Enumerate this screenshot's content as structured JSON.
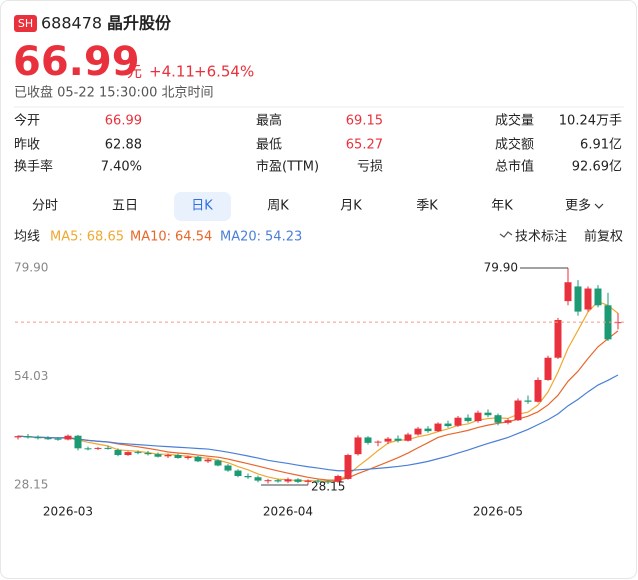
{
  "header": {
    "badge": "SH",
    "code": "688478",
    "name": "晶升股份",
    "price": "66.99",
    "unit": "元",
    "change": "+4.11",
    "change_pct": "+6.54%",
    "status": "已收盘 05-22 15:30:00 北京时间"
  },
  "stats": [
    [
      {
        "label": "今开",
        "value": "66.99",
        "color": "#e8313c"
      },
      {
        "label": "最高",
        "value": "69.15",
        "color": "#e8313c"
      },
      {
        "label": "成交量",
        "value": "10.24万手"
      }
    ],
    [
      {
        "label": "昨收",
        "value": "62.88"
      },
      {
        "label": "最低",
        "value": "65.27",
        "color": "#e8313c"
      },
      {
        "label": "成交额",
        "value": "6.91亿"
      }
    ],
    [
      {
        "label": "换手率",
        "value": "7.40%"
      },
      {
        "label": "市盈(TTM)",
        "value": "亏损"
      },
      {
        "label": "总市值",
        "value": "92.69亿"
      }
    ]
  ],
  "tabs": [
    "分时",
    "五日",
    "日K",
    "周K",
    "月K",
    "季K",
    "年K",
    "更多"
  ],
  "selected_tab": 2,
  "ma_legend": {
    "title": "均线",
    "items": [
      {
        "name": "MA5:",
        "value": 68.65,
        "color": "#f0a830"
      },
      {
        "name": "MA10:",
        "value": 64.54,
        "color": "#e8672a"
      },
      {
        "name": "MA20:",
        "value": 54.23,
        "color": "#4a7fd8"
      }
    ],
    "tools": [
      "技术标注",
      "前复权"
    ]
  },
  "chart_data": {
    "type": "candlestick",
    "up_color": "#e8313c",
    "down_color": "#1b9a74",
    "categories": [
      null,
      null,
      null,
      null,
      null,
      "2026-03",
      null,
      null,
      null,
      null,
      null,
      null,
      null,
      null,
      null,
      null,
      null,
      null,
      null,
      null,
      null,
      null,
      null,
      null,
      null,
      null,
      null,
      "2026-04",
      null,
      null,
      null,
      null,
      null,
      null,
      null,
      null,
      null,
      null,
      null,
      null,
      null,
      null,
      null,
      null,
      null,
      null,
      null,
      null,
      "2026-05",
      null,
      null,
      null,
      null,
      null,
      null,
      null,
      null,
      null,
      null,
      null,
      null
    ],
    "values": [
      [
        39.5,
        40,
        39,
        39.8
      ],
      [
        39.8,
        40.3,
        39.2,
        39.5
      ],
      [
        39.6,
        40,
        39,
        39.3
      ],
      [
        39.3,
        39.8,
        38.9,
        39.2
      ],
      [
        39.2,
        39.6,
        38.7,
        39
      ],
      [
        39,
        40.2,
        38.8,
        39.9
      ],
      [
        39.9,
        40.1,
        36.4,
        36.9
      ],
      [
        36.9,
        37.3,
        36.4,
        36.7
      ],
      [
        36.8,
        37.2,
        36.5,
        37
      ],
      [
        37,
        37.5,
        36.6,
        36.8
      ],
      [
        36.5,
        36.9,
        35,
        35.3
      ],
      [
        35.3,
        36.2,
        35.1,
        36
      ],
      [
        36,
        36.4,
        35.5,
        35.8
      ],
      [
        35.8,
        36.3,
        35.2,
        35.5
      ],
      [
        35.5,
        35.9,
        34.7,
        34.9
      ],
      [
        35,
        35.6,
        34.6,
        35.3
      ],
      [
        35.3,
        35.6,
        34.4,
        34.6
      ],
      [
        34.6,
        35.2,
        34.2,
        34.9
      ],
      [
        34.9,
        35.1,
        33.6,
        33.8
      ],
      [
        33.8,
        34.5,
        33.4,
        34.2
      ],
      [
        34,
        34.3,
        32.6,
        32.8
      ],
      [
        32.8,
        33.2,
        31.3,
        31.6
      ],
      [
        31.6,
        31.9,
        30,
        30.3
      ],
      [
        30.3,
        30.9,
        29.6,
        30
      ],
      [
        30,
        30.4,
        28.8,
        29.2
      ],
      [
        29.1,
        29.6,
        28.5,
        29.3
      ],
      [
        29.3,
        29.6,
        28.7,
        29
      ],
      [
        29,
        29.9,
        28.6,
        29.5
      ],
      [
        29.5,
        29.8,
        28.6,
        28.9
      ],
      [
        28.9,
        29.5,
        28.15,
        29.2
      ],
      [
        29.2,
        29.5,
        28.6,
        29
      ],
      [
        29,
        29.3,
        28.4,
        28.8
      ],
      [
        28.9,
        30.6,
        28.7,
        30.3
      ],
      [
        29.6,
        35.6,
        29.4,
        35.3
      ],
      [
        35.5,
        40,
        35.2,
        39.5
      ],
      [
        39.5,
        39.8,
        37.8,
        38.2
      ],
      [
        38.3,
        38.8,
        37.4,
        38.5
      ],
      [
        38.5,
        39.6,
        37.9,
        39.2
      ],
      [
        39.2,
        40,
        38.3,
        38.7
      ],
      [
        38.7,
        40.6,
        38.5,
        40.2
      ],
      [
        40.2,
        42,
        39.9,
        41.6
      ],
      [
        41.6,
        42.2,
        40.6,
        41
      ],
      [
        41,
        43.1,
        40.8,
        42.8
      ],
      [
        42.8,
        43.5,
        41.8,
        42.2
      ],
      [
        42.3,
        44.6,
        42,
        44.2
      ],
      [
        44.2,
        45,
        43,
        43.4
      ],
      [
        43.4,
        45.9,
        43,
        45.4
      ],
      [
        45.4,
        46.2,
        44.3,
        44.8
      ],
      [
        44.8,
        45.2,
        42.4,
        43
      ],
      [
        43,
        44,
        42.6,
        43.6
      ],
      [
        43.6,
        48.8,
        43.4,
        48.3
      ],
      [
        48.3,
        49.5,
        47.5,
        48
      ],
      [
        48,
        53.8,
        47.8,
        53.2
      ],
      [
        53.2,
        59,
        53,
        58.5
      ],
      [
        58.5,
        68,
        58.2,
        67.5
      ],
      [
        72,
        79.9,
        71,
        76.5
      ],
      [
        75.5,
        77,
        68.5,
        69.5
      ],
      [
        70,
        75.5,
        69.5,
        75
      ],
      [
        75,
        75.8,
        70.5,
        71
      ],
      [
        71,
        74,
        62.5,
        62.88
      ],
      [
        66.99,
        69.15,
        65.27,
        66.99
      ]
    ],
    "annotations": [
      {
        "value": 79.9,
        "label": "79.90"
      },
      {
        "value": 28.15,
        "label": "28.15"
      }
    ],
    "ylim": [
      25.77,
      82.28
    ],
    "yticks": [
      {
        "value": 28.15,
        "label": "28.15"
      },
      {
        "value": 54.03,
        "label": "54.03"
      },
      {
        "value": 79.9,
        "label": "79.90"
      }
    ]
  }
}
